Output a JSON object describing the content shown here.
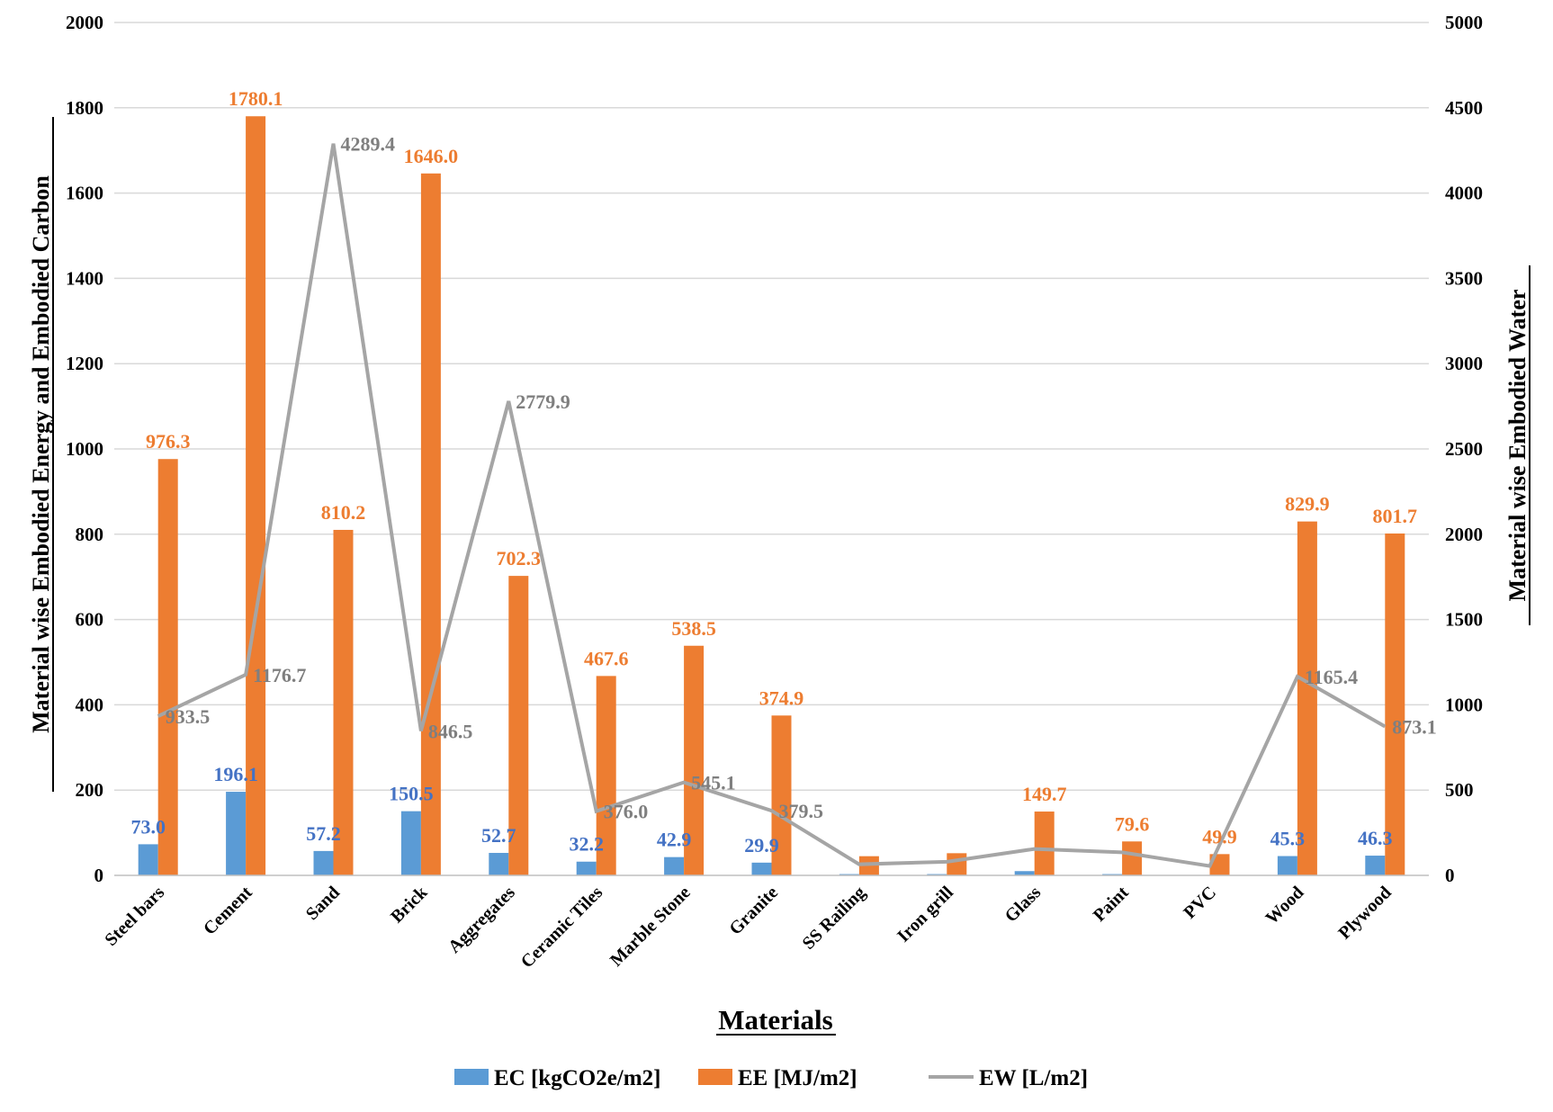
{
  "chart_data": {
    "type": "bar",
    "title": "",
    "xlabel": "Materials",
    "ylabel": "Material wise Embodied Energy and Embodied Carbon",
    "y2label": "Material wise Embodied Water",
    "ylim": [
      0,
      2000
    ],
    "y2lim": [
      0,
      5000
    ],
    "yticks": [
      "0",
      "200",
      "400",
      "600",
      "800",
      "1000",
      "1200",
      "1400",
      "1600",
      "1800",
      "2000"
    ],
    "y2ticks": [
      "0",
      "500",
      "1000",
      "1500",
      "2000",
      "2500",
      "3000",
      "3500",
      "4000",
      "4500",
      "5000"
    ],
    "grid": true,
    "legend_position": "bottom",
    "categories": [
      "Steel bars",
      "Cement",
      "Sand",
      "Brick",
      "Aggregates",
      "Ceramic Tiles",
      "Marble Stone",
      "Granite",
      "SS Railing",
      "Iron grill",
      "Glass",
      "Paint",
      "PVC",
      "Wood",
      "Plywood"
    ],
    "series": [
      {
        "name": "EC [kgCO2e/m2]",
        "type": "bar",
        "axis": "left",
        "color": "#5B9BD5",
        "label_color": "#4472C4",
        "values": [
          73.0,
          196.1,
          57.2,
          150.5,
          52.7,
          32.2,
          42.9,
          29.9,
          3.0,
          3.0,
          10.0,
          3.0,
          1.0,
          45.3,
          46.3
        ],
        "labels": [
          "73.0",
          "196.1",
          "57.2",
          "150.5",
          "52.7",
          "32.2",
          "42.9",
          "29.9",
          "",
          "",
          "",
          "",
          "",
          "45.3",
          "46.3"
        ]
      },
      {
        "name": "EE [MJ/m2]",
        "type": "bar",
        "axis": "left",
        "color": "#ED7D31",
        "label_color": "#ED7D31",
        "values": [
          976.3,
          1780.1,
          810.2,
          1646.0,
          702.3,
          467.6,
          538.5,
          374.9,
          45.0,
          52.0,
          149.7,
          79.6,
          49.9,
          829.9,
          801.7
        ],
        "labels": [
          "976.3",
          "1780.1",
          "810.2",
          "1646.0",
          "702.3",
          "467.6",
          "538.5",
          "374.9",
          "",
          "",
          "149.7",
          "79.6",
          "49.9",
          "829.9",
          "801.7"
        ]
      },
      {
        "name": "EW [L/m2]",
        "type": "line",
        "axis": "right",
        "color": "#A5A5A5",
        "label_color": "#7F7F7F",
        "values": [
          933.5,
          1176.7,
          4289.4,
          846.5,
          2779.9,
          376.0,
          545.1,
          379.5,
          65.0,
          80.0,
          155.0,
          135.0,
          55.0,
          1165.4,
          873.1
        ],
        "labels": [
          "933.5",
          "1176.7",
          "4289.4",
          "846.5",
          "2779.9",
          "376.0",
          "545.1",
          "379.5",
          "",
          "",
          "",
          "",
          "",
          "1165.4",
          "873.1"
        ]
      }
    ]
  }
}
